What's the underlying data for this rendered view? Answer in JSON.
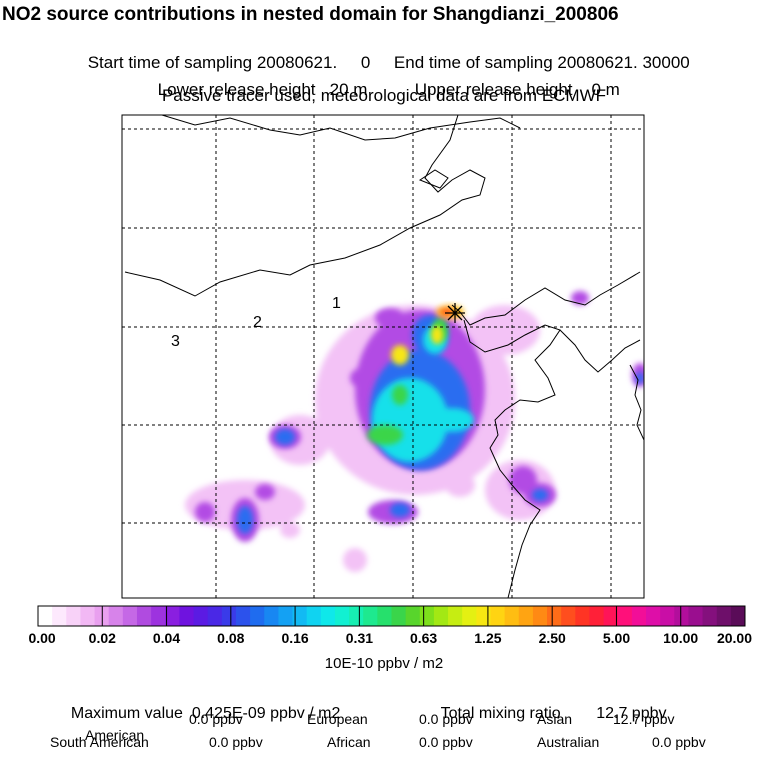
{
  "header": {
    "title": "NO2 source contributions in nested domain for Shangdianzi_200806",
    "start_label": "Start time of sampling 20080621.",
    "start_value": "0",
    "end_label": "End time of sampling 20080621. 30000",
    "lower_label": "Lower release height",
    "lower_value": "20 m",
    "upper_label": "Upper release height",
    "upper_value": "0 m",
    "tracer_note": "Passive tracer used, meteorological data are from ECMWF"
  },
  "map": {
    "ring_labels": [
      "1",
      "2",
      "3"
    ],
    "station_marker": "station-star-icon",
    "colors": {
      "frame": "#000000",
      "grid": "#000000",
      "coast": "#000000"
    }
  },
  "colorbar": {
    "tick_labels": [
      "0.00",
      "0.02",
      "0.04",
      "0.08",
      "0.16",
      "0.31",
      "0.63",
      "1.25",
      "2.50",
      "5.00",
      "10.00",
      "20.00"
    ],
    "colors": [
      "#ffffff",
      "#fde9fd",
      "#f8d2f8",
      "#f2b8f4",
      "#e9a0ef",
      "#d783ea",
      "#c568e6",
      "#b04be0",
      "#9d33df",
      "#8a1fe0",
      "#6f13df",
      "#5b1be3",
      "#4a28e6",
      "#3a3be9",
      "#2c52ec",
      "#1f6cef",
      "#1887f2",
      "#14a1f3",
      "#12baf3",
      "#10d3f1",
      "#0fe8ea",
      "#12f0d2",
      "#17efb2",
      "#1ee98f",
      "#26e06c",
      "#3ad54a",
      "#58d52c",
      "#7ee01c",
      "#a3e814",
      "#c6ed12",
      "#e4f012",
      "#f7e712",
      "#ffd412",
      "#ffbd12",
      "#ffa412",
      "#ff8a14",
      "#ff6c18",
      "#ff4e1e",
      "#ff3424",
      "#ff2038",
      "#ff1458",
      "#ff107a",
      "#f20e98",
      "#de0ea8",
      "#c90ea6",
      "#b20e9c",
      "#9a0e8f",
      "#84107d",
      "#6e0f6a",
      "#5a0c58"
    ],
    "units": "10E-10 ppbv / m2"
  },
  "stats": {
    "max_label": "Maximum value",
    "max_value": "0.425E-09 ppbv / m2",
    "total_label": "Total mixing ratio",
    "total_value": "12.7 ppbv",
    "regions": [
      {
        "name": "American",
        "value": "0.0 ppbv"
      },
      {
        "name": "European",
        "value": "0.0 ppbv"
      },
      {
        "name": "Asian",
        "value": "12.7 ppbv"
      },
      {
        "name": "South American",
        "value": "0.0 ppbv"
      },
      {
        "name": "African",
        "value": "0.0 ppbv"
      },
      {
        "name": "Australian",
        "value": "0.0 ppbv"
      }
    ]
  }
}
